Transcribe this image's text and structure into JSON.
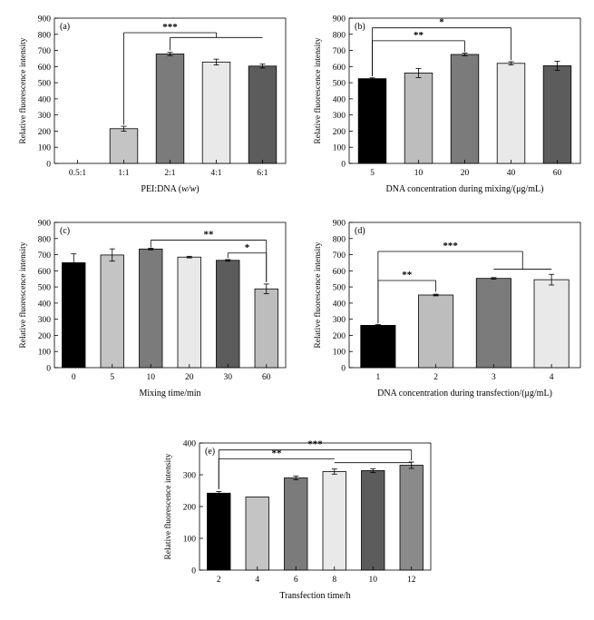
{
  "chart_data": [
    {
      "panel": "(a)",
      "type": "bar",
      "title": "",
      "xlabel_parts": [
        [
          "PEI:DNA (",
          "n"
        ],
        [
          "w/w",
          "i"
        ],
        [
          ")",
          "n"
        ]
      ],
      "ylabel": "Relative fluorescence intensity",
      "ylim": [
        0,
        900
      ],
      "ytick_step": 100,
      "categories": [
        "0.5:1",
        "1:1",
        "2:1",
        "4:1",
        "6:1"
      ],
      "values": [
        0,
        215,
        678,
        628,
        603
      ],
      "errors": [
        0,
        15,
        10,
        18,
        12
      ],
      "colors": [
        "#ffffff",
        "#c4c4c4",
        "#7b7b7b",
        "#e9e9e9",
        "#5c5c5c"
      ],
      "annotations": [
        {
          "type": "bracket",
          "from": 1,
          "to": 3,
          "y": 810,
          "label": "***",
          "drops": [
            {
              "at": 1,
              "y": 240
            },
            {
              "at": 3,
              "y": 780
            }
          ]
        },
        {
          "type": "line",
          "from": 2,
          "to": 4,
          "y": 780,
          "label": "",
          "drops": [
            {
              "at": 2,
              "y": 700
            },
            {
              "at": 4,
              "y": 780
            }
          ]
        }
      ]
    },
    {
      "panel": "(b)",
      "type": "bar",
      "title": "",
      "xlabel_parts": [
        [
          "DNA concentration during mixing/(μg/mL)",
          "n"
        ]
      ],
      "ylabel": "Relative fluorescence intensity",
      "ylim": [
        0,
        900
      ],
      "ytick_step": 100,
      "categories": [
        "5",
        "10",
        "20",
        "40",
        "60"
      ],
      "values": [
        525,
        560,
        675,
        620,
        605
      ],
      "errors": [
        5,
        28,
        8,
        10,
        28
      ],
      "colors": [
        "#000000",
        "#bdbdbd",
        "#7b7b7b",
        "#e9e9e9",
        "#5c5c5c"
      ],
      "annotations": [
        {
          "type": "bracket",
          "from": 0,
          "to": 3,
          "y": 840,
          "label": "*",
          "drops": [
            {
              "at": 0,
              "y": 540
            },
            {
              "at": 3,
              "y": 640
            }
          ]
        },
        {
          "type": "bracket",
          "from": 0,
          "to": 2,
          "y": 760,
          "label": "**",
          "drops": [
            {
              "at": 0,
              "y": 540
            },
            {
              "at": 2,
              "y": 690
            }
          ]
        }
      ]
    },
    {
      "panel": "(c)",
      "type": "bar",
      "title": "",
      "xlabel_parts": [
        [
          "Mixing time/min",
          "n"
        ]
      ],
      "ylabel": "Relative fluorescence intensity",
      "ylim": [
        0,
        900
      ],
      "ytick_step": 100,
      "categories": [
        "0",
        "5",
        "10",
        "20",
        "30",
        "60"
      ],
      "values": [
        650,
        698,
        735,
        685,
        665,
        488
      ],
      "errors": [
        55,
        38,
        5,
        5,
        5,
        30
      ],
      "colors": [
        "#000000",
        "#c4c4c4",
        "#7b7b7b",
        "#e9e9e9",
        "#5c5c5c",
        "#bdbdbd"
      ],
      "annotations": [
        {
          "type": "bracket",
          "from": 2,
          "to": 5,
          "y": 790,
          "label": "**",
          "drops": [
            {
              "at": 2,
              "y": 745
            },
            {
              "at": 5,
              "y": 530
            }
          ]
        },
        {
          "type": "bracket",
          "from": 4,
          "to": 5,
          "y": 710,
          "label": "*",
          "drops": [
            {
              "at": 4,
              "y": 680
            },
            {
              "at": 5,
              "y": 530
            }
          ]
        }
      ]
    },
    {
      "panel": "(d)",
      "type": "bar",
      "title": "",
      "xlabel_parts": [
        [
          "DNA concentration during transfection/(μg/mL)",
          "n"
        ]
      ],
      "ylabel": "Relative fluorescence intensity",
      "ylim": [
        0,
        900
      ],
      "ytick_step": 100,
      "categories": [
        "1",
        "2",
        "3",
        "4"
      ],
      "values": [
        262,
        450,
        553,
        545
      ],
      "errors": [
        5,
        5,
        5,
        33
      ],
      "colors": [
        "#000000",
        "#bdbdbd",
        "#7b7b7b",
        "#e9e9e9"
      ],
      "annotations": [
        {
          "type": "bracket",
          "from": 0,
          "to": 2.5,
          "y": 720,
          "label": "***",
          "drops": [
            {
              "at": 0,
              "y": 275
            },
            {
              "at": 2.5,
              "y": 610
            }
          ]
        },
        {
          "type": "line",
          "from": 2,
          "to": 3,
          "y": 610,
          "label": "",
          "drops": []
        },
        {
          "type": "bracket",
          "from": 0,
          "to": 1,
          "y": 540,
          "label": "**",
          "drops": [
            {
              "at": 0,
              "y": 275
            },
            {
              "at": 1,
              "y": 470
            }
          ]
        }
      ]
    },
    {
      "panel": "(e)",
      "type": "bar",
      "title": "",
      "xlabel_parts": [
        [
          "Transfection time/h",
          "n"
        ]
      ],
      "ylabel": "Relative fluorescence intensity",
      "ylim": [
        0,
        400
      ],
      "ytick_step": 100,
      "categories": [
        "2",
        "4",
        "6",
        "8",
        "10",
        "12"
      ],
      "values": [
        242,
        230,
        290,
        310,
        313,
        330
      ],
      "errors": [
        5,
        0,
        6,
        8,
        6,
        10
      ],
      "colors": [
        "#000000",
        "#c4c4c4",
        "#7b7b7b",
        "#e9e9e9",
        "#5c5c5c",
        "#8a8a8a"
      ],
      "annotations": [
        {
          "type": "bracket",
          "from": 0,
          "to": 5,
          "y": 378,
          "label": "***",
          "drops": [
            {
              "at": 0,
              "y": 255
            },
            {
              "at": 5,
              "y": 345
            }
          ]
        },
        {
          "type": "bracket",
          "from": 0,
          "to": 3,
          "y": 350,
          "label": "**",
          "drops": [
            {
              "at": 0,
              "y": 255
            },
            {
              "at": 3,
              "y": 350
            }
          ]
        },
        {
          "type": "line",
          "from": 3,
          "to": 5,
          "y": 338,
          "label": "",
          "drops": []
        }
      ]
    }
  ]
}
